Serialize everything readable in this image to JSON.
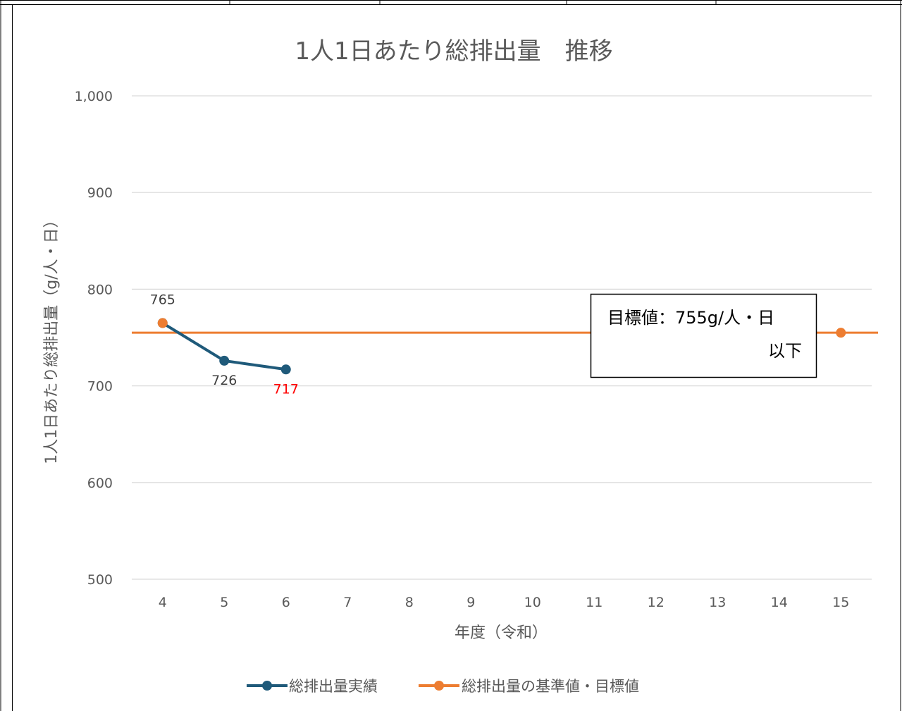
{
  "page": {
    "top_table_cells": 6
  },
  "chart_data": {
    "type": "line",
    "title": "1人1日あたり総排出量　推移",
    "xlabel": "年度（令和）",
    "ylabel": "1人1日あたり総排出量（g/人・日）",
    "categories": [
      "4",
      "5",
      "6",
      "7",
      "8",
      "9",
      "10",
      "11",
      "12",
      "13",
      "14",
      "15"
    ],
    "ylim": [
      500,
      1000
    ],
    "yticks": [
      500,
      600,
      700,
      800,
      900,
      1000
    ],
    "ytick_labels": [
      "500",
      "600",
      "700",
      "800",
      "900",
      "1,000"
    ],
    "grid": true,
    "legend_position": "bottom",
    "series": [
      {
        "name": "総排出量実績",
        "color": "#1f5a7a",
        "points": [
          {
            "x": "4",
            "y": 765
          },
          {
            "x": "5",
            "y": 726
          },
          {
            "x": "6",
            "y": 717
          }
        ],
        "data_labels": [
          {
            "x": "4",
            "text": "765",
            "position": "above",
            "color": "#404040"
          },
          {
            "x": "5",
            "text": "726",
            "position": "below",
            "color": "#404040"
          },
          {
            "x": "6",
            "text": "717",
            "position": "below",
            "color": "#ff0000"
          }
        ]
      },
      {
        "name": "総排出量の基準値・目標値",
        "color": "#ed7d31",
        "points": [
          {
            "x": "4",
            "y": 765
          },
          {
            "x": "15",
            "y": 755
          }
        ]
      }
    ],
    "target_line": {
      "value": 755,
      "color": "#ed7d31"
    },
    "annotation": {
      "line1_prefix": "目標値：",
      "line1_value": "755g/人・日",
      "line2": "以下"
    }
  }
}
